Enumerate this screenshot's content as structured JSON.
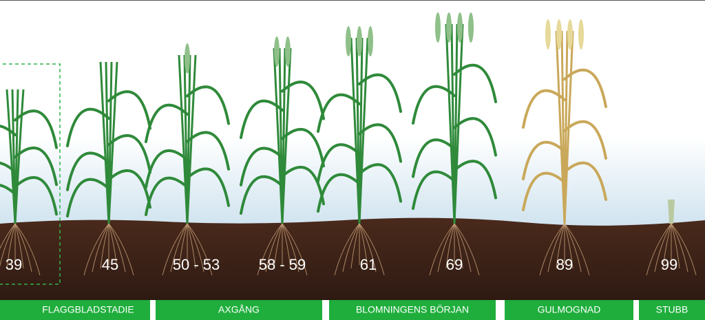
{
  "stages": [
    {
      "label": "39"
    },
    {
      "label": "45"
    },
    {
      "label": "50 - 53"
    },
    {
      "label": "58 - 59"
    },
    {
      "label": "61"
    },
    {
      "label": "69"
    },
    {
      "label": "89"
    },
    {
      "label": "99"
    }
  ],
  "phases": [
    {
      "label": "FLAGGBLADSTADIE"
    },
    {
      "label": "AXGÅNG"
    },
    {
      "label": "BLOMNINGENS BÖRJAN"
    },
    {
      "label": "GULMOGNAD"
    },
    {
      "label": "STUBB"
    }
  ]
}
